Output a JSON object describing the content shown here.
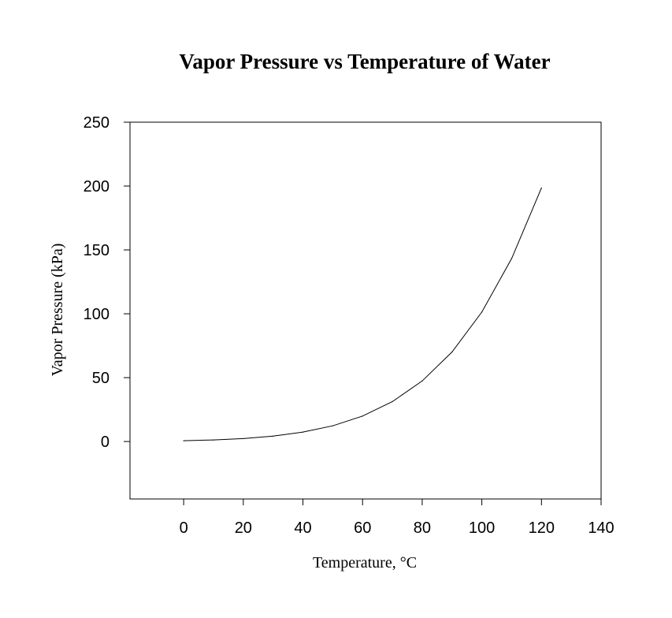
{
  "chart_data": {
    "type": "line",
    "title": "Vapor Pressure vs Temperature of Water",
    "xlabel": "Temperature, °C",
    "ylabel": "Vapor Pressure (kPa)",
    "xlim": [
      -18,
      140
    ],
    "ylim": [
      -45,
      250
    ],
    "xticks": [
      0,
      20,
      40,
      60,
      80,
      100,
      120,
      140
    ],
    "yticks": [
      0,
      50,
      100,
      150,
      200,
      250
    ],
    "xtick_labels": [
      "0",
      "20",
      "40",
      "60",
      "80",
      "100",
      "120",
      "140"
    ],
    "ytick_labels": [
      "0",
      "50",
      "100",
      "150",
      "200",
      "250"
    ],
    "grid": false,
    "legend": "none",
    "series": [
      {
        "x": [
          0,
          10,
          20,
          30,
          40,
          50,
          60,
          70,
          80,
          90,
          100,
          110,
          120
        ],
        "y": [
          0.6,
          1.2,
          2.3,
          4.2,
          7.4,
          12.3,
          19.9,
          31.2,
          47.4,
          70.1,
          101.3,
          143.3,
          198.5
        ],
        "color": "#000000"
      }
    ]
  }
}
